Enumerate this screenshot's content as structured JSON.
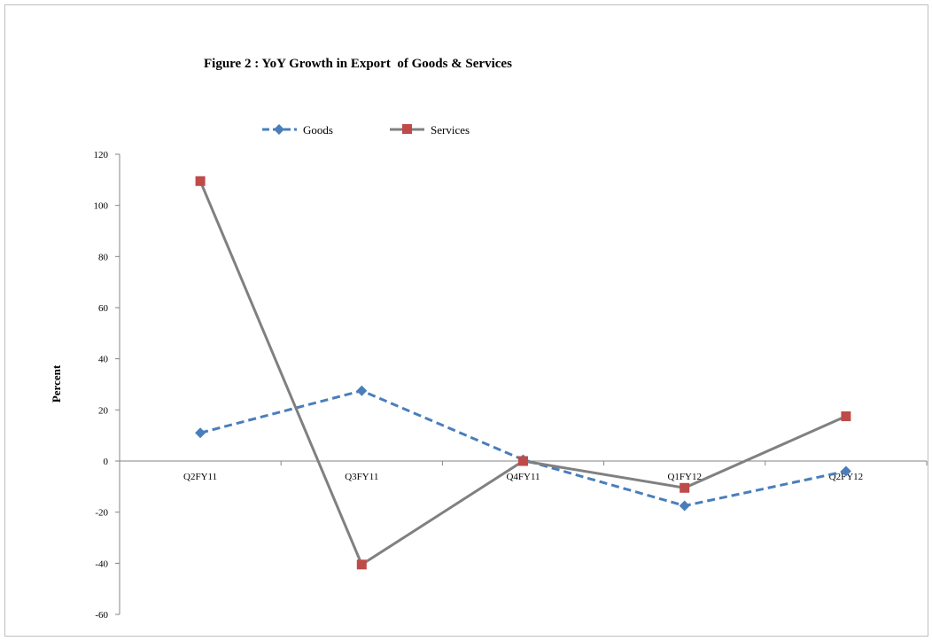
{
  "chart_data": {
    "type": "line",
    "title": "Figure 2 : YoY Growth in Export  of Goods & Services",
    "ylabel": "Percent",
    "xlabel": "",
    "categories": [
      "Q2FY11",
      "Q3FY11",
      "Q4FY11",
      "Q1FY12",
      "Q2FY12"
    ],
    "ylim": [
      -60,
      120
    ],
    "yticks": [
      "120",
      "100",
      "80",
      "60",
      "40",
      "20",
      "0",
      "-20",
      "-40",
      "-60"
    ],
    "ytick_values": [
      120,
      100,
      80,
      60,
      40,
      20,
      0,
      -20,
      -40,
      -60
    ],
    "grid": false,
    "legend_position": "top",
    "series": [
      {
        "name": "Goods",
        "values": [
          11,
          27.5,
          0.5,
          -17.5,
          -4
        ],
        "color": "#4a7ebb",
        "dash": "dashed",
        "marker": "diamond"
      },
      {
        "name": "Services",
        "values": [
          109.5,
          -40.5,
          0,
          -10.5,
          17.5
        ],
        "color": "#808080",
        "marker_color": "#be4b48",
        "dash": "solid",
        "marker": "square"
      }
    ]
  }
}
